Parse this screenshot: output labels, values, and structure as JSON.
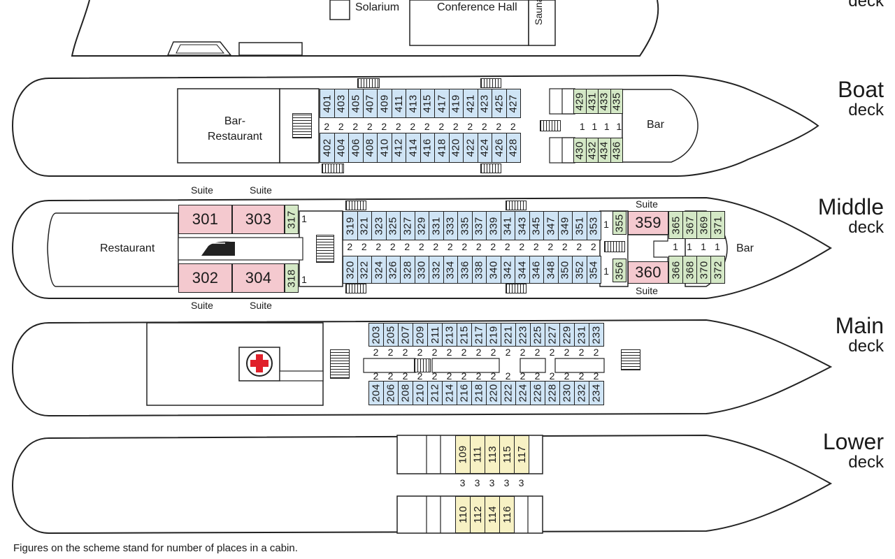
{
  "sun_deck": {
    "rooms": [
      "Solarium",
      "Conference Hall",
      "Sauna"
    ],
    "label_small": "deck"
  },
  "boat_deck": {
    "name": "Boat",
    "label_small": "deck",
    "restaurant": "Bar-\nRestaurant",
    "bar": "Bar",
    "cabins_top": [
      "401",
      "403",
      "405",
      "407",
      "409",
      "411",
      "413",
      "415",
      "417",
      "419",
      "421",
      "423",
      "425",
      "427"
    ],
    "cabins_bottom": [
      "402",
      "404",
      "406",
      "408",
      "410",
      "412",
      "414",
      "416",
      "418",
      "420",
      "422",
      "424",
      "426",
      "428"
    ],
    "cabins_aft_top": [
      "429",
      "431",
      "433",
      "435"
    ],
    "cabins_aft_bottom": [
      "430",
      "432",
      "434",
      "436"
    ],
    "berths_main": "2",
    "berths_aft": "1"
  },
  "middle_deck": {
    "name": "Middle",
    "label_small": "deck",
    "restaurant": "Restaurant",
    "bar": "Bar",
    "suite_label": "Suite",
    "suites_top": [
      "301",
      "303"
    ],
    "suites_bottom": [
      "302",
      "304"
    ],
    "single_top": "317",
    "single_bottom": "318",
    "cabins_top": [
      "319",
      "321",
      "323",
      "325",
      "327",
      "329",
      "331",
      "333",
      "335",
      "337",
      "339",
      "341",
      "343",
      "345",
      "347",
      "349",
      "351",
      "353"
    ],
    "cabins_bottom": [
      "320",
      "322",
      "324",
      "326",
      "328",
      "330",
      "332",
      "334",
      "336",
      "338",
      "340",
      "342",
      "344",
      "346",
      "348",
      "350",
      "352",
      "354"
    ],
    "single_aft_top": "355",
    "single_aft_bottom": "356",
    "suite_aft_top": "359",
    "suite_aft_bottom": "360",
    "cabins_aft_top": [
      "365",
      "367",
      "369",
      "371"
    ],
    "cabins_aft_bottom": [
      "366",
      "368",
      "370",
      "372"
    ],
    "berths_main": "2",
    "berths_single": "1"
  },
  "main_deck": {
    "name": "Main",
    "label_small": "deck",
    "cabins_top": [
      "203",
      "205",
      "207",
      "209",
      "211",
      "213",
      "215",
      "217",
      "219",
      "221",
      "223",
      "225",
      "227",
      "229",
      "231",
      "233"
    ],
    "cabins_bottom": [
      "204",
      "206",
      "208",
      "210",
      "212",
      "214",
      "216",
      "218",
      "220",
      "222",
      "224",
      "226",
      "228",
      "230",
      "232",
      "234"
    ],
    "berths_main": "2"
  },
  "lower_deck": {
    "name": "Lower",
    "label_small": "deck",
    "cabins_top": [
      "109",
      "111",
      "113",
      "115",
      "117"
    ],
    "cabins_bottom": [
      "110",
      "112",
      "114",
      "116"
    ],
    "berths_main": "3"
  },
  "footnote": "Figures on the scheme stand for number of places in a cabin.",
  "colors": {
    "standard_cabin": "#cfe4f5",
    "single_cabin": "#d4e8c6",
    "suite": "#f4c9cf",
    "lower_cabin": "#f7f1c4",
    "medical_cross": "#e0202a"
  }
}
